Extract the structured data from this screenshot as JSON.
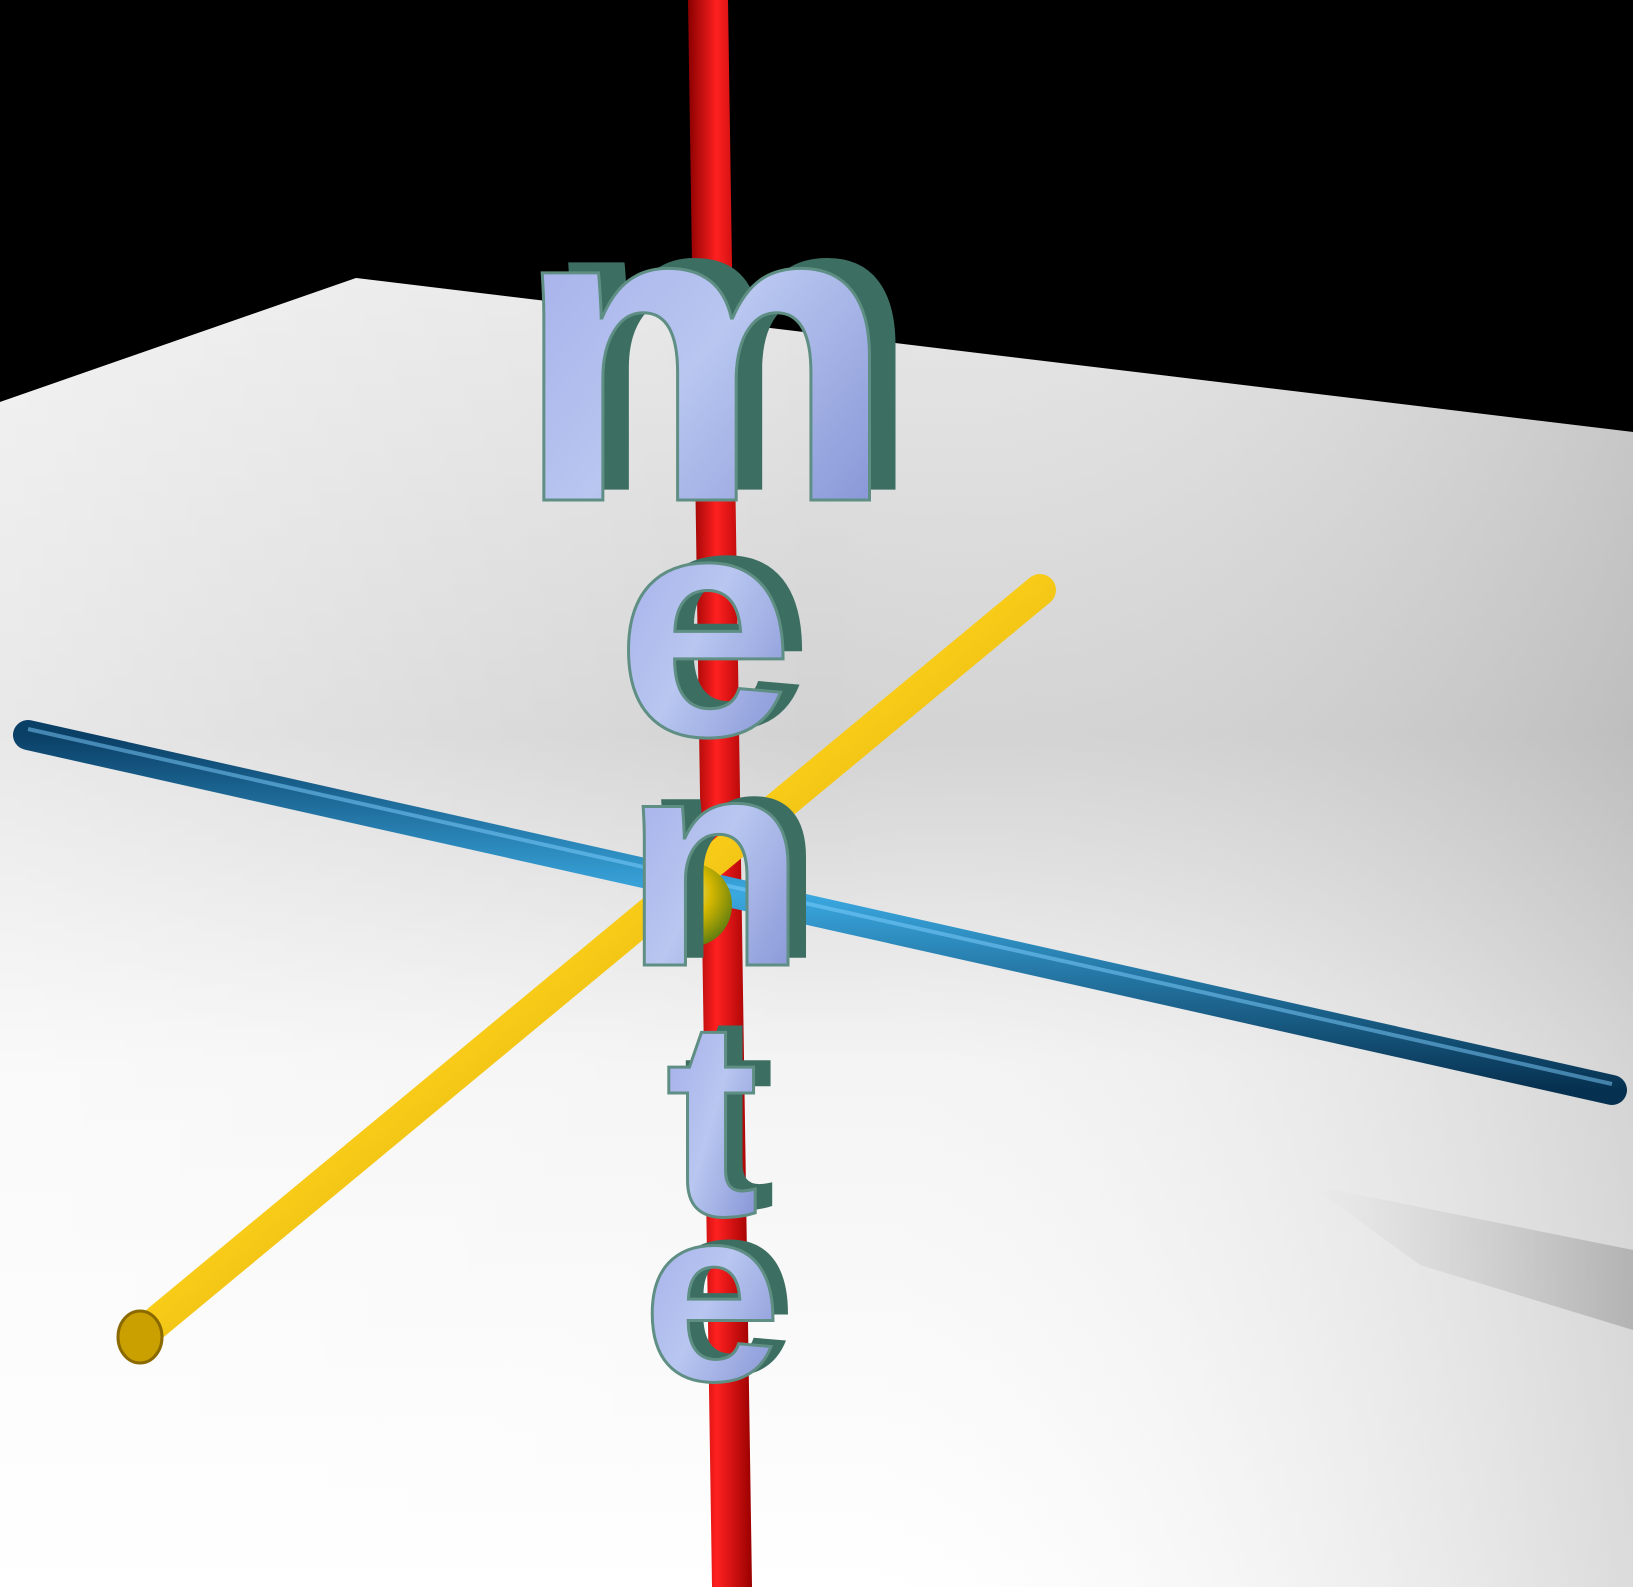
{
  "letters": [
    "m",
    "e",
    "n",
    "t",
    "e"
  ]
}
